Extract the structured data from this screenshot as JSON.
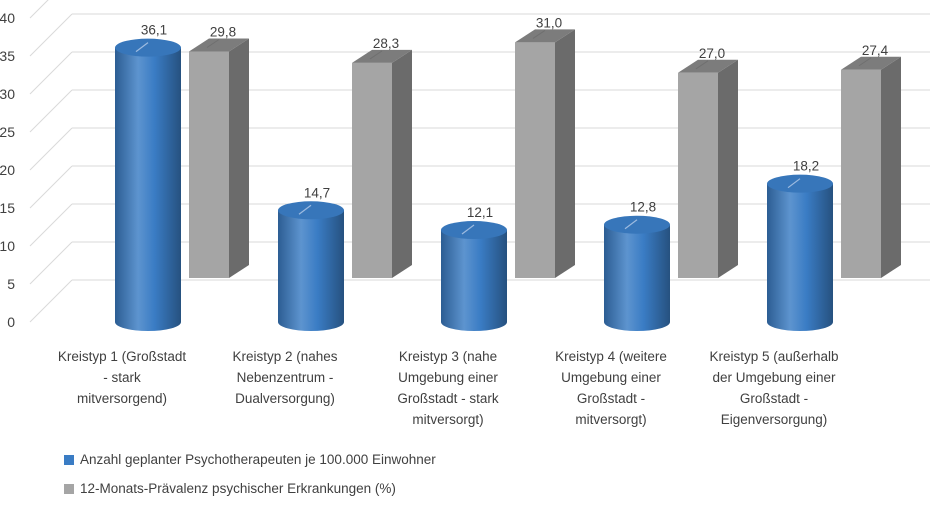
{
  "chart_data": {
    "type": "bar",
    "style": "3d-cylinder-and-box",
    "categories": [
      [
        "Kreistyp 1 (Großstadt",
        "- stark",
        "mitversorgend)"
      ],
      [
        "Kreistyp 2 (nahes",
        "Nebenzentrum -",
        "Dualversorgung)"
      ],
      [
        "Kreistyp 3 (nahe",
        "Umgebung einer",
        "Großstadt - stark",
        "mitversorgt)"
      ],
      [
        "Kreistyp 4 (weitere",
        "Umgebung einer",
        "Großstadt -",
        "mitversorgt)"
      ],
      [
        "Kreistyp 5 (außerhalb",
        "der Umgebung einer",
        "Großstadt -",
        "Eigenversorgung)"
      ]
    ],
    "series": [
      {
        "name": "Anzahl geplanter Psychotherapeuten je 100.000 Einwohner",
        "shape": "cylinder",
        "color": "#3a7cc4",
        "values": [
          36.1,
          14.7,
          12.1,
          12.8,
          18.2
        ],
        "labels": [
          "36,1",
          "14,7",
          "12,1",
          "12,8",
          "18,2"
        ]
      },
      {
        "name": "12-Monats-Prävalenz psychischer Erkrankungen (%)",
        "shape": "box",
        "color": "#a5a5a5",
        "values": [
          29.8,
          28.3,
          31.0,
          27.0,
          27.4
        ],
        "labels": [
          "29,8",
          "28,3",
          "31,0",
          "27,0",
          "27,4"
        ]
      }
    ],
    "ylim": [
      0,
      40
    ],
    "yticks": [
      "0",
      "5",
      "10",
      "15",
      "20",
      "25",
      "30",
      "35",
      "40"
    ],
    "grid": true,
    "legend_position": "bottom",
    "title": "",
    "xlabel": "",
    "ylabel": ""
  }
}
